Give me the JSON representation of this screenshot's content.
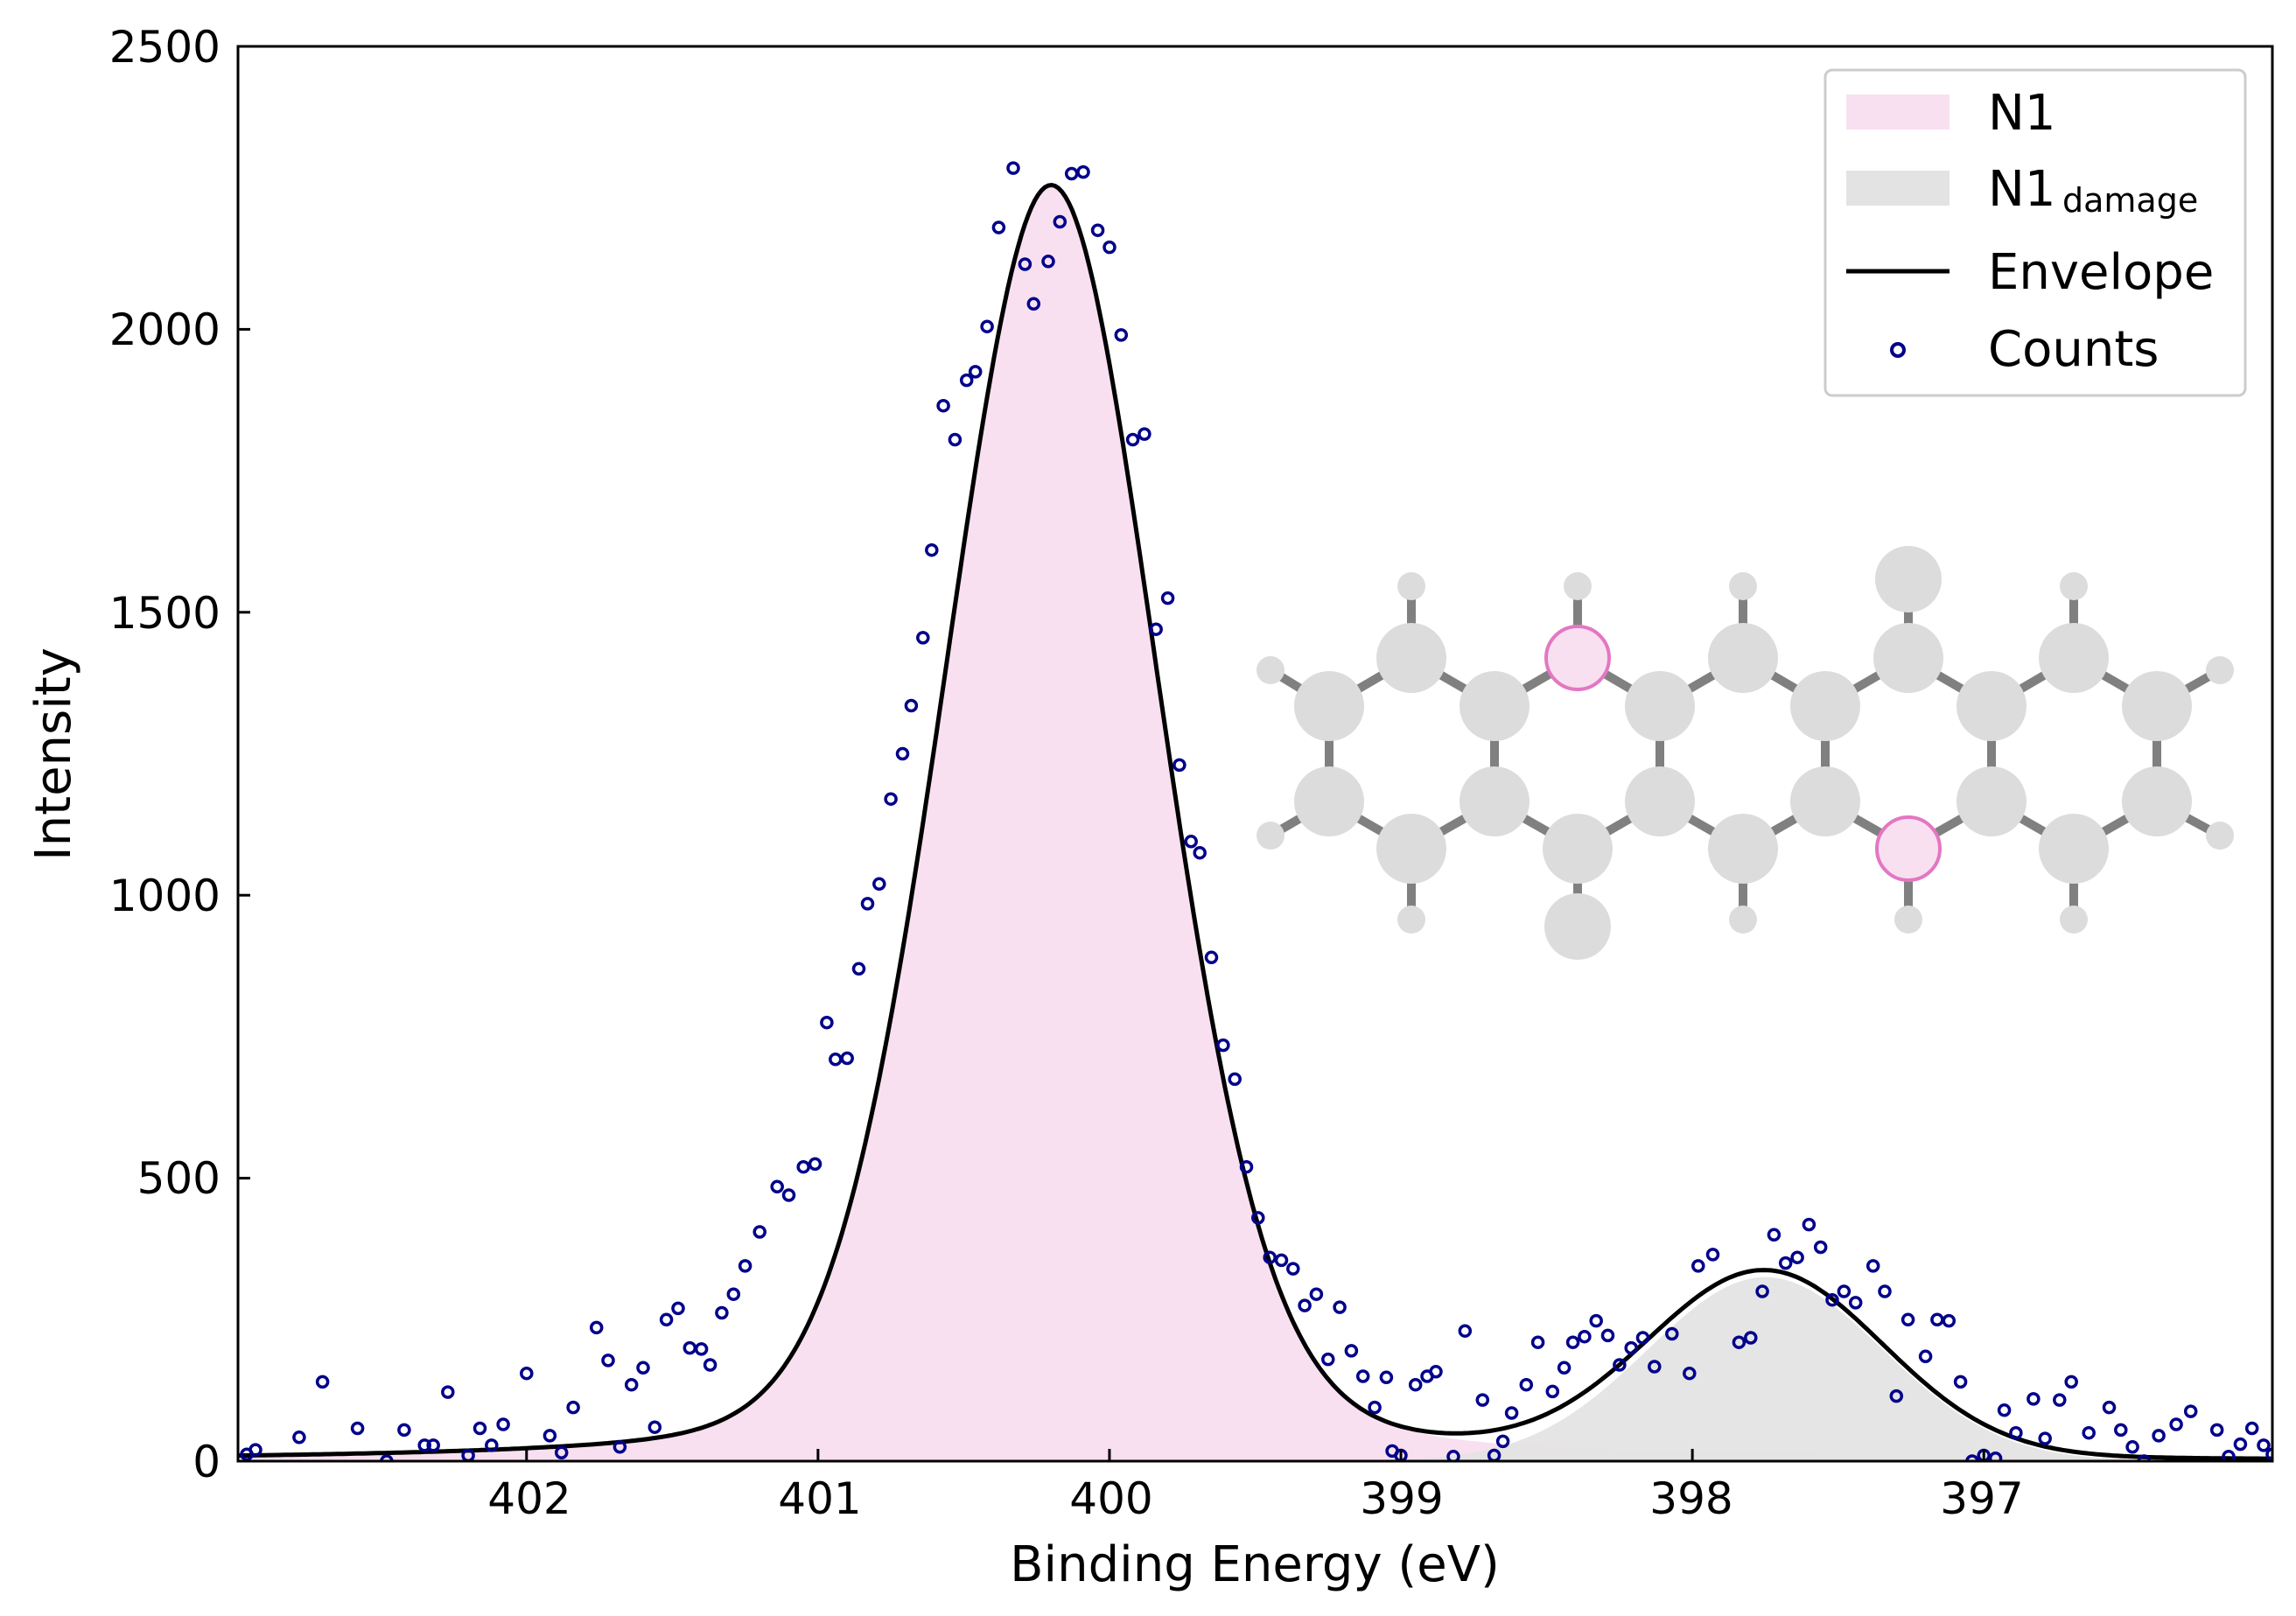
{
  "chart_data": {
    "type": "line",
    "title": "",
    "xlabel": "Binding Energy (eV)",
    "ylabel": "Intensity",
    "xlim": [
      402.99,
      396.01
    ],
    "ylim": [
      0,
      2500
    ],
    "x_reversed": true,
    "x_ticks": [
      "402",
      "401",
      "400",
      "399",
      "398",
      "397"
    ],
    "y_ticks": [
      "0",
      "500",
      "1000",
      "1500",
      "2000",
      "2500"
    ],
    "grid": false,
    "legend_position": "top-right",
    "legend": {
      "n1": "N1",
      "n1_damage_main": "N1",
      "n1_damage_sub": "damage",
      "envelope": "Envelope",
      "counts": "Counts"
    },
    "colors": {
      "n1_fill": "#f8e0f1",
      "damage_fill": "#e3e3e3",
      "envelope": "#000000",
      "counts": "#00008b",
      "highlight_atom_fill": "#f8e0f1",
      "highlight_atom_stroke": "#e377c2",
      "atom": "#dcdcdc",
      "bond": "#808080"
    },
    "series": [
      {
        "name": "N1",
        "kind": "voigt_peak",
        "center": 400.2,
        "amplitude": 2255,
        "gauss_fwhm": 0.88,
        "lorentz_fraction": 0.18
      },
      {
        "name": "N1damage",
        "kind": "gaussian_peak",
        "center": 397.75,
        "amplitude": 325,
        "fwhm": 0.95
      },
      {
        "name": "Envelope",
        "kind": "sum"
      },
      {
        "name": "Counts",
        "kind": "scatter",
        "points": [
          [
            402.96,
            12
          ],
          [
            402.93,
            20
          ],
          [
            402.78,
            42
          ],
          [
            402.7,
            140
          ],
          [
            402.58,
            58
          ],
          [
            402.48,
            0
          ],
          [
            402.42,
            55
          ],
          [
            402.35,
            28
          ],
          [
            402.32,
            28
          ],
          [
            402.27,
            122
          ],
          [
            402.2,
            10
          ],
          [
            402.16,
            58
          ],
          [
            402.12,
            28
          ],
          [
            402.08,
            65
          ],
          [
            402.0,
            155
          ],
          [
            401.92,
            45
          ],
          [
            401.88,
            15
          ],
          [
            401.84,
            95
          ],
          [
            401.76,
            236
          ],
          [
            401.72,
            178
          ],
          [
            401.68,
            25
          ],
          [
            401.64,
            135
          ],
          [
            401.6,
            165
          ],
          [
            401.56,
            60
          ],
          [
            401.52,
            250
          ],
          [
            401.48,
            270
          ],
          [
            401.44,
            200
          ],
          [
            401.4,
            198
          ],
          [
            401.37,
            170
          ],
          [
            401.33,
            262
          ],
          [
            401.29,
            295
          ],
          [
            401.25,
            345
          ],
          [
            401.2,
            405
          ],
          [
            401.14,
            485
          ],
          [
            401.1,
            470
          ],
          [
            401.05,
            520
          ],
          [
            401.01,
            525
          ],
          [
            400.97,
            775
          ],
          [
            400.94,
            710
          ],
          [
            400.9,
            712
          ],
          [
            400.86,
            870
          ],
          [
            400.83,
            985
          ],
          [
            400.79,
            1020
          ],
          [
            400.75,
            1170
          ],
          [
            400.71,
            1250
          ],
          [
            400.68,
            1335
          ],
          [
            400.64,
            1455
          ],
          [
            400.61,
            1610
          ],
          [
            400.57,
            1865
          ],
          [
            400.53,
            1805
          ],
          [
            400.49,
            1910
          ],
          [
            400.46,
            1925
          ],
          [
            400.42,
            2005
          ],
          [
            400.38,
            2180
          ],
          [
            400.33,
            2285
          ],
          [
            400.29,
            2115
          ],
          [
            400.26,
            2045
          ],
          [
            400.21,
            2120
          ],
          [
            400.17,
            2190
          ],
          [
            400.13,
            2275
          ],
          [
            400.09,
            2278
          ],
          [
            400.04,
            2175
          ],
          [
            400.0,
            2145
          ],
          [
            399.96,
            1990
          ],
          [
            399.92,
            1805
          ],
          [
            399.88,
            1815
          ],
          [
            399.84,
            1470
          ],
          [
            399.8,
            1525
          ],
          [
            399.76,
            1230
          ],
          [
            399.72,
            1095
          ],
          [
            399.69,
            1075
          ],
          [
            399.65,
            890
          ],
          [
            399.61,
            735
          ],
          [
            399.57,
            675
          ],
          [
            399.53,
            520
          ],
          [
            399.49,
            430
          ],
          [
            399.45,
            360
          ],
          [
            399.41,
            355
          ],
          [
            399.37,
            340
          ],
          [
            399.33,
            275
          ],
          [
            399.29,
            295
          ],
          [
            399.25,
            180
          ],
          [
            399.21,
            272
          ],
          [
            399.17,
            195
          ],
          [
            399.13,
            150
          ],
          [
            399.09,
            95
          ],
          [
            399.05,
            148
          ],
          [
            399.03,
            18
          ],
          [
            399.0,
            10
          ],
          [
            398.95,
            135
          ],
          [
            398.91,
            150
          ],
          [
            398.88,
            158
          ],
          [
            398.82,
            8
          ],
          [
            398.78,
            230
          ],
          [
            398.72,
            108
          ],
          [
            398.68,
            10
          ],
          [
            398.65,
            35
          ],
          [
            398.62,
            85
          ],
          [
            398.57,
            135
          ],
          [
            398.53,
            210
          ],
          [
            398.48,
            123
          ],
          [
            398.44,
            165
          ],
          [
            398.41,
            210
          ],
          [
            398.37,
            220
          ],
          [
            398.33,
            248
          ],
          [
            398.29,
            222
          ],
          [
            398.25,
            170
          ],
          [
            398.21,
            200
          ],
          [
            398.17,
            218
          ],
          [
            398.13,
            167
          ],
          [
            398.07,
            225
          ],
          [
            398.01,
            155
          ],
          [
            397.98,
            345
          ],
          [
            397.93,
            365
          ],
          [
            397.84,
            210
          ],
          [
            397.8,
            218
          ],
          [
            397.76,
            300
          ],
          [
            397.72,
            400
          ],
          [
            397.68,
            350
          ],
          [
            397.64,
            360
          ],
          [
            397.6,
            418
          ],
          [
            397.56,
            378
          ],
          [
            397.52,
            285
          ],
          [
            397.48,
            300
          ],
          [
            397.44,
            280
          ],
          [
            397.38,
            345
          ],
          [
            397.34,
            300
          ],
          [
            397.3,
            115
          ],
          [
            397.26,
            250
          ],
          [
            397.2,
            185
          ],
          [
            397.16,
            250
          ],
          [
            397.12,
            248
          ],
          [
            397.08,
            140
          ],
          [
            397.04,
            0
          ],
          [
            397.0,
            10
          ],
          [
            396.96,
            5
          ],
          [
            396.93,
            90
          ],
          [
            396.89,
            50
          ],
          [
            396.83,
            110
          ],
          [
            396.79,
            40
          ],
          [
            396.74,
            108
          ],
          [
            396.7,
            140
          ],
          [
            396.64,
            50
          ],
          [
            396.57,
            95
          ],
          [
            396.53,
            55
          ],
          [
            396.49,
            25
          ],
          [
            396.45,
            0
          ],
          [
            396.4,
            45
          ],
          [
            396.34,
            65
          ],
          [
            396.29,
            88
          ],
          [
            396.2,
            55
          ],
          [
            396.16,
            8
          ],
          [
            396.12,
            30
          ],
          [
            396.08,
            58
          ],
          [
            396.04,
            28
          ],
          [
            396.01,
            12
          ]
        ]
      }
    ]
  }
}
